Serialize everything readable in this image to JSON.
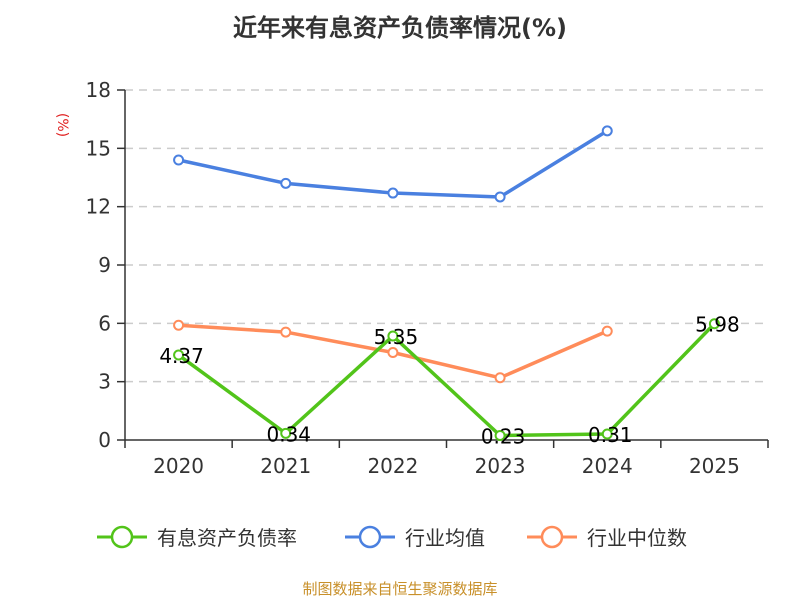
{
  "title": "近年来有息资产负债率情况(%)",
  "source": "制图数据来自恒生聚源数据库",
  "colors": {
    "debt": "#52c41a",
    "avg": "#4a80e0",
    "median": "#ff8c5a",
    "grid": "#cccccc",
    "axis": "#333333"
  },
  "chart_data": {
    "type": "line",
    "title": "近年来有息资产负债率情况(%)",
    "xlabel": "",
    "ylabel": "(%)",
    "categories": [
      "2020",
      "2021",
      "2022",
      "2023",
      "2024",
      "2025"
    ],
    "ylim": [
      0,
      18
    ],
    "yticks": [
      0,
      3,
      6,
      9,
      12,
      15,
      18
    ],
    "grid": true,
    "legend_position": "bottom",
    "series": [
      {
        "name": "有息资产负债率",
        "values": [
          4.37,
          0.34,
          5.35,
          0.23,
          0.31,
          5.98
        ],
        "labels": [
          "4.37",
          "0.34",
          "5.35",
          "0.23",
          "0.31",
          "5.98"
        ]
      },
      {
        "name": "行业均值",
        "values": [
          14.4,
          13.2,
          12.7,
          12.5,
          15.9,
          null
        ]
      },
      {
        "name": "行业中位数",
        "values": [
          5.9,
          5.55,
          4.5,
          3.2,
          5.6,
          null
        ]
      }
    ]
  },
  "legend": [
    {
      "label": "有息资产负债率"
    },
    {
      "label": "行业均值"
    },
    {
      "label": "行业中位数"
    }
  ],
  "yaxis": {
    "unit": "(%)"
  }
}
